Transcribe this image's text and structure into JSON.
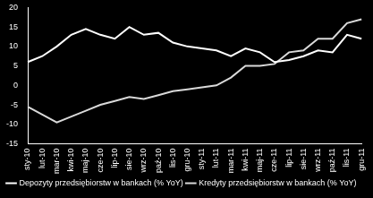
{
  "chart_data": {
    "type": "line",
    "categories": [
      "sty-10",
      "lut-10",
      "mar-10",
      "kwi-10",
      "maj-10",
      "cze-10",
      "lip-10",
      "sie-10",
      "wrz-10",
      "paź-10",
      "lis-10",
      "gru-10",
      "sty-11",
      "lut-11",
      "mar-11",
      "kwi-11",
      "maj-11",
      "cze-11",
      "lip-11",
      "sie-11",
      "wrz-11",
      "paź-11",
      "lis-11",
      "gru-11"
    ],
    "series": [
      {
        "name": "Depozyty przedsiębiorstw w bankach (% YoY)",
        "color": "#ffffff",
        "values": [
          6,
          7.5,
          10,
          13,
          14.5,
          13,
          12,
          15,
          13,
          13.5,
          11,
          10,
          9.5,
          9,
          7.5,
          9.5,
          8.5,
          6,
          6.5,
          7.5,
          9,
          8.5,
          13,
          12
        ]
      },
      {
        "name": "Kredyty przedsiębiorstw w bankach (% YoY)",
        "color": "#d9d9d9",
        "values": [
          -5.5,
          -7.5,
          -9.5,
          -8,
          -6.5,
          -5,
          -4,
          -3,
          -3.5,
          -2.5,
          -1.5,
          -1,
          -0.5,
          0,
          2,
          5,
          5,
          5.5,
          8.5,
          9,
          12,
          12,
          16,
          17
        ]
      }
    ],
    "ylim": [
      -15,
      20
    ],
    "yticks": [
      -15,
      -10,
      -5,
      0,
      5,
      10,
      15,
      20
    ],
    "grid": false,
    "legend": "bottom"
  }
}
